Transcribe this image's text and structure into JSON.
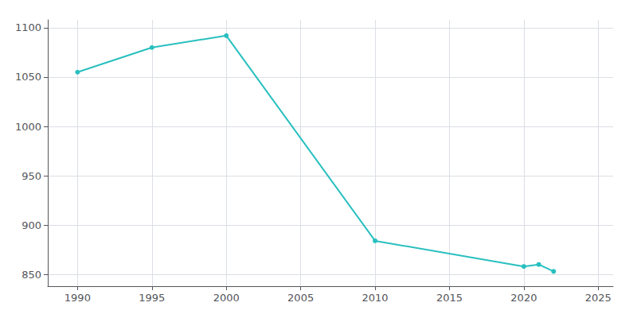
{
  "chart_data": {
    "type": "line",
    "x": [
      1990,
      1995,
      2000,
      2010,
      2020,
      2021,
      2022
    ],
    "values": [
      1055,
      1080,
      1092,
      884,
      858,
      860,
      853
    ],
    "color": "#29BFBF",
    "marker": "circle",
    "xlim": [
      1988,
      2026
    ],
    "ylim": [
      838,
      1108
    ],
    "xticks": [
      1990,
      1995,
      2000,
      2005,
      2010,
      2015,
      2020,
      2025
    ],
    "yticks": [
      850,
      900,
      950,
      1000,
      1050,
      1100
    ],
    "grid": true
  }
}
